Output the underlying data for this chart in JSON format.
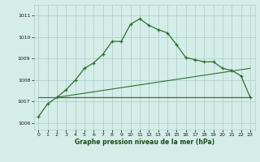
{
  "xlabel": "Graphe pression niveau de la mer (hPa)",
  "background_color": "#d5ede8",
  "grid_color": "#b0d0cc",
  "line_color": "#2d6e2d",
  "xlim": [
    -0.5,
    23.5
  ],
  "ylim": [
    1005.7,
    1011.5
  ],
  "yticks": [
    1006,
    1007,
    1008,
    1009,
    1010,
    1011
  ],
  "xticks": [
    0,
    1,
    2,
    3,
    4,
    5,
    6,
    7,
    8,
    9,
    10,
    11,
    12,
    13,
    14,
    15,
    16,
    17,
    18,
    19,
    20,
    21,
    22,
    23
  ],
  "main_x": [
    0,
    1,
    2,
    3,
    4,
    5,
    6,
    7,
    8,
    9,
    10,
    11,
    12,
    13,
    14,
    15,
    16,
    17,
    18,
    19,
    20,
    21,
    22,
    23
  ],
  "main_y": [
    1006.3,
    1006.9,
    1007.2,
    1007.55,
    1008.0,
    1008.55,
    1008.8,
    1009.2,
    1009.8,
    1009.8,
    1010.6,
    1010.85,
    1010.55,
    1010.35,
    1010.2,
    1009.65,
    1009.05,
    1008.95,
    1008.85,
    1008.85,
    1008.55,
    1008.45,
    1008.2,
    1007.2
  ],
  "refline1_x": [
    2,
    23
  ],
  "refline1_y": [
    1007.2,
    1007.2
  ],
  "refline2_x": [
    2,
    23
  ],
  "refline2_y": [
    1007.2,
    1008.55
  ],
  "refline3_x": [
    0,
    23
  ],
  "refline3_y": [
    1007.2,
    1007.2
  ]
}
